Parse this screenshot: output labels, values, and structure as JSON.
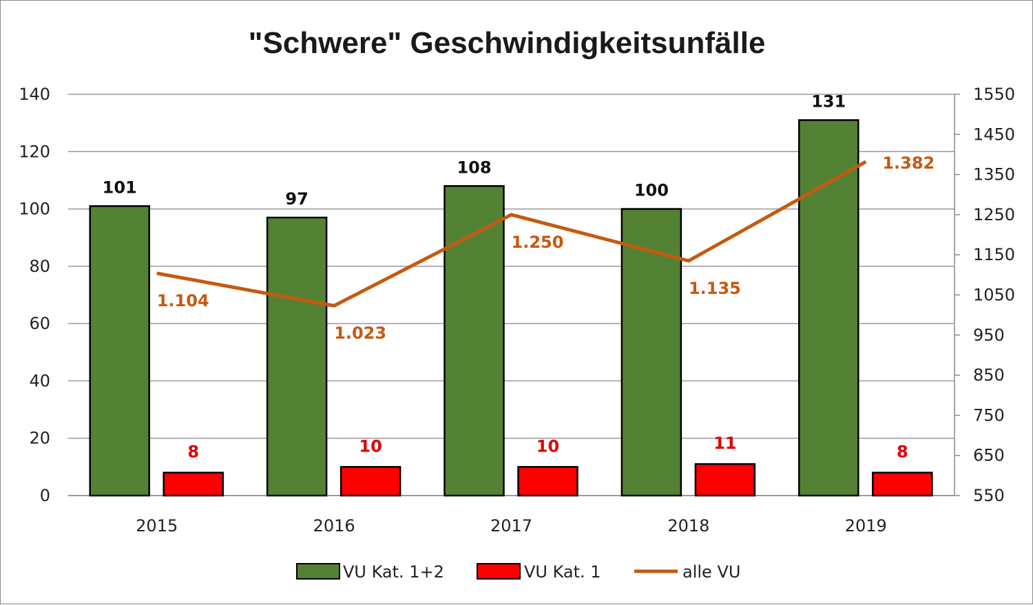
{
  "chart_data": {
    "type": "bar",
    "title": "\"Schwere\" Geschwindigkeitsunfälle",
    "categories": [
      "2015",
      "2016",
      "2017",
      "2018",
      "2019"
    ],
    "series": [
      {
        "name": "VU Kat. 1+2",
        "type": "bar",
        "axis": "left",
        "color": "#548235",
        "values": [
          101,
          97,
          108,
          100,
          131
        ],
        "labels": [
          "101",
          "97",
          "108",
          "100",
          "131"
        ]
      },
      {
        "name": "VU Kat. 1",
        "type": "bar",
        "axis": "left",
        "color": "#ff0000",
        "values": [
          8,
          10,
          10,
          11,
          8
        ],
        "labels": [
          "8",
          "10",
          "10",
          "11",
          "8"
        ]
      },
      {
        "name": "alle VU",
        "type": "line",
        "axis": "right",
        "color": "#c55a11",
        "values": [
          1104,
          1023,
          1250,
          1135,
          1382
        ],
        "labels": [
          "1.104",
          "1.023",
          "1.250",
          "1.135",
          "1.382"
        ]
      }
    ],
    "y_left": {
      "min": 0,
      "max": 140,
      "ticks": [
        "0",
        "20",
        "40",
        "60",
        "80",
        "100",
        "120",
        "140"
      ]
    },
    "y_right": {
      "min": 550,
      "max": 1550,
      "ticks": [
        "550",
        "650",
        "750",
        "850",
        "950",
        "1050",
        "1150",
        "1250",
        "1350",
        "1450",
        "1550"
      ]
    },
    "grid": true,
    "legend_position": "bottom"
  }
}
